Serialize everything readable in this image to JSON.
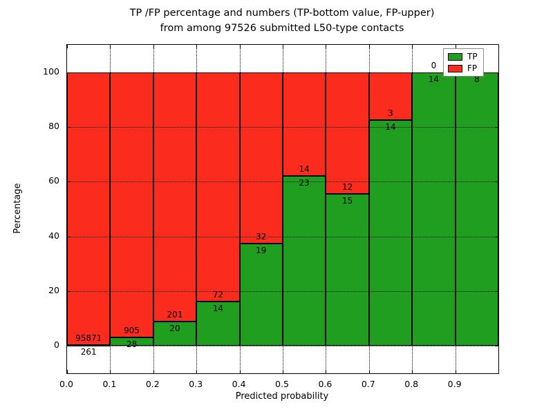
{
  "title": {
    "line1": "TP /FP percentage and numbers (TP-bottom value, FP-upper)",
    "line2": "from among 97526 submitted L50-type contacts"
  },
  "axes": {
    "xlabel": "Predicted probability",
    "ylabel": "Percentage",
    "x_ticks": [
      "0.0",
      "0.1",
      "0.2",
      "0.3",
      "0.4",
      "0.5",
      "0.6",
      "0.7",
      "0.8",
      "0.9"
    ],
    "y_ticks": [
      "0",
      "20",
      "40",
      "60",
      "80",
      "100"
    ],
    "ylim": [
      -10,
      110
    ],
    "xlim": [
      0.0,
      1.0
    ],
    "grid": "dotted"
  },
  "legend": {
    "position": "upper-right",
    "entries": [
      {
        "label": "TP",
        "color": "#1f9e1f"
      },
      {
        "label": "FP",
        "color": "#fb2b1d"
      }
    ]
  },
  "colors": {
    "tp": "#1f9e1f",
    "fp": "#fb2b1d",
    "grid": "#000000",
    "axis": "#000000",
    "background": "#ffffff"
  },
  "chart_data": {
    "type": "bar",
    "stacked": true,
    "title": "TP /FP percentage and numbers (TP-bottom value, FP-upper) from among 97526 submitted L50-type contacts",
    "xlabel": "Predicted probability",
    "ylabel": "Percentage",
    "ylim": [
      0,
      100
    ],
    "bin_width": 0.1,
    "total_contacts": 97526,
    "bins": [
      {
        "x_start": 0.0,
        "x_end": 0.1,
        "tp_count": 261,
        "fp_count": 95871,
        "tp_pct": 0.3,
        "fp_pct": 99.7
      },
      {
        "x_start": 0.1,
        "x_end": 0.2,
        "tp_count": 28,
        "fp_count": 905,
        "tp_pct": 3.0,
        "fp_pct": 97.0
      },
      {
        "x_start": 0.2,
        "x_end": 0.3,
        "tp_count": 20,
        "fp_count": 201,
        "tp_pct": 9.0,
        "fp_pct": 91.0
      },
      {
        "x_start": 0.3,
        "x_end": 0.4,
        "tp_count": 14,
        "fp_count": 72,
        "tp_pct": 16.3,
        "fp_pct": 83.7
      },
      {
        "x_start": 0.4,
        "x_end": 0.5,
        "tp_count": 19,
        "fp_count": 32,
        "tp_pct": 37.3,
        "fp_pct": 62.7
      },
      {
        "x_start": 0.5,
        "x_end": 0.6,
        "tp_count": 23,
        "fp_count": 14,
        "tp_pct": 62.2,
        "fp_pct": 37.8
      },
      {
        "x_start": 0.6,
        "x_end": 0.7,
        "tp_count": 15,
        "fp_count": 12,
        "tp_pct": 55.6,
        "fp_pct": 44.4
      },
      {
        "x_start": 0.7,
        "x_end": 0.8,
        "tp_count": 14,
        "fp_count": 3,
        "tp_pct": 82.4,
        "fp_pct": 17.6
      },
      {
        "x_start": 0.8,
        "x_end": 0.9,
        "tp_count": 14,
        "fp_count": 0,
        "tp_pct": 100,
        "fp_pct": 0
      },
      {
        "x_start": 0.9,
        "x_end": 1.0,
        "tp_count": 8,
        "fp_count": 0,
        "tp_pct": 100,
        "fp_pct": 0
      }
    ]
  }
}
